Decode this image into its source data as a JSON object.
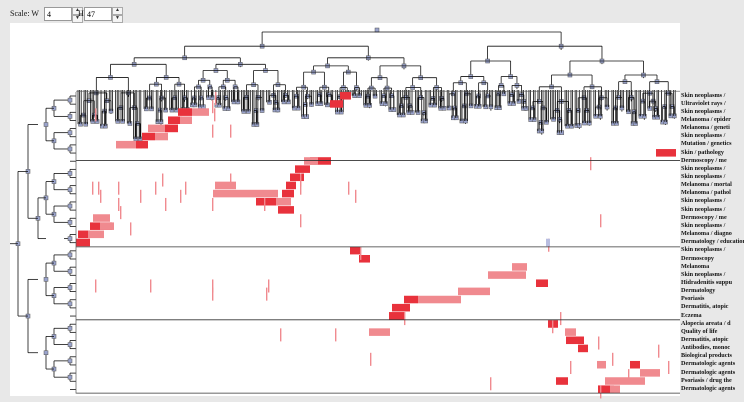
{
  "toolbar": {
    "scale_label": "Scale: W",
    "w_value": "4",
    "h_label": "H",
    "h_value": "47"
  },
  "colors": {
    "cell_dark": "#e8323c",
    "cell_light": "#f08a8f",
    "cell_pale": "#f5b6b8",
    "tree_line": "#111111",
    "node": "#9aa3cc"
  },
  "row_labels": [
    "Skin neoplasms /",
    "Ultraviolet rays /",
    "Skin neoplasms /",
    "Melanoma / epider",
    "Melanoma / geneti",
    "Skin neoplasms /",
    "Mutation / genetics",
    "Skin / pathology",
    "Dermoscopy / me",
    "Skin neoplasms /",
    "Skin neoplasms /",
    "Melanoma / mortal",
    "Melanoma / pathol",
    "Skin neoplasms /",
    "Skin neoplasms /",
    "Dermoscopy / me",
    "Skin neoplasms /",
    "Melanoma / diagno",
    "Dermatology / education",
    "Skin neoplasms /",
    "Dermoscopy",
    "Melanoma",
    "Skin neoplasms /",
    "Hidradenitis suppu",
    "Dermatology",
    "Psoriasis",
    "Dermatitis, atopic",
    "Eczema",
    "Alopecia areata / d",
    "Quality of life",
    "Dermatitis, atopic",
    "Antibodies, monoc",
    "Biological products",
    "Dermatologic agents",
    "Dermatologic agents",
    "Psoriasis / drug the",
    "Dermatologic agents"
  ]
}
